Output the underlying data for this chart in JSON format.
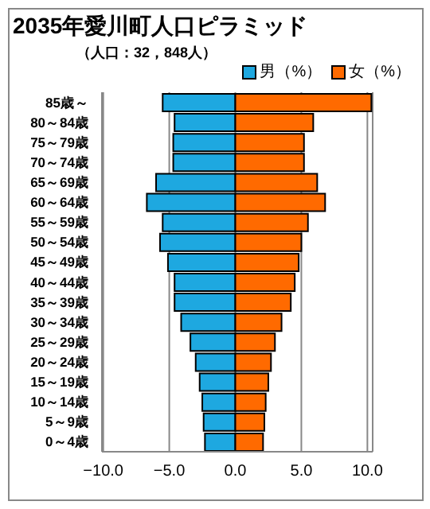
{
  "chart_data": {
    "type": "bar",
    "orientation": "horizontal",
    "stacked": true,
    "title": "2035年愛川町人口ピラミッド",
    "subtitle": "（人口：32，848人）",
    "categories": [
      "85歳～",
      "80～84歳",
      "75～79歳",
      "70～74歳",
      "65～69歳",
      "60～64歳",
      "55～59歳",
      "50～54歳",
      "45～49歳",
      "40～44歳",
      "35～39歳",
      "30～34歳",
      "25～29歳",
      "20～24歳",
      "15～19歳",
      "10～14歳",
      "5～9歳",
      "0～4歳"
    ],
    "series": [
      {
        "name": "男（%）",
        "color": "#1ea8e0",
        "values": [
          -5.5,
          -4.6,
          -4.7,
          -4.7,
          -6.0,
          -6.7,
          -5.5,
          -5.7,
          -5.1,
          -4.6,
          -4.6,
          -4.1,
          -3.4,
          -3.0,
          -2.7,
          -2.5,
          -2.4,
          -2.3
        ]
      },
      {
        "name": "女（%）",
        "color": "#ff6a00",
        "values": [
          10.3,
          5.9,
          5.2,
          5.2,
          6.2,
          6.8,
          5.5,
          5.0,
          4.8,
          4.5,
          4.2,
          3.5,
          3.0,
          2.7,
          2.5,
          2.3,
          2.2,
          2.1
        ]
      }
    ],
    "xlim": [
      -10.1,
      10.4
    ],
    "xticks": [
      {
        "value": -10,
        "label": "−10.0"
      },
      {
        "value": -5,
        "label": "−5.0"
      },
      {
        "value": 0,
        "label": "0.0"
      },
      {
        "value": 5,
        "label": "5.0"
      },
      {
        "value": 10,
        "label": "10.0"
      }
    ],
    "grid": "x",
    "legend": "top right"
  }
}
